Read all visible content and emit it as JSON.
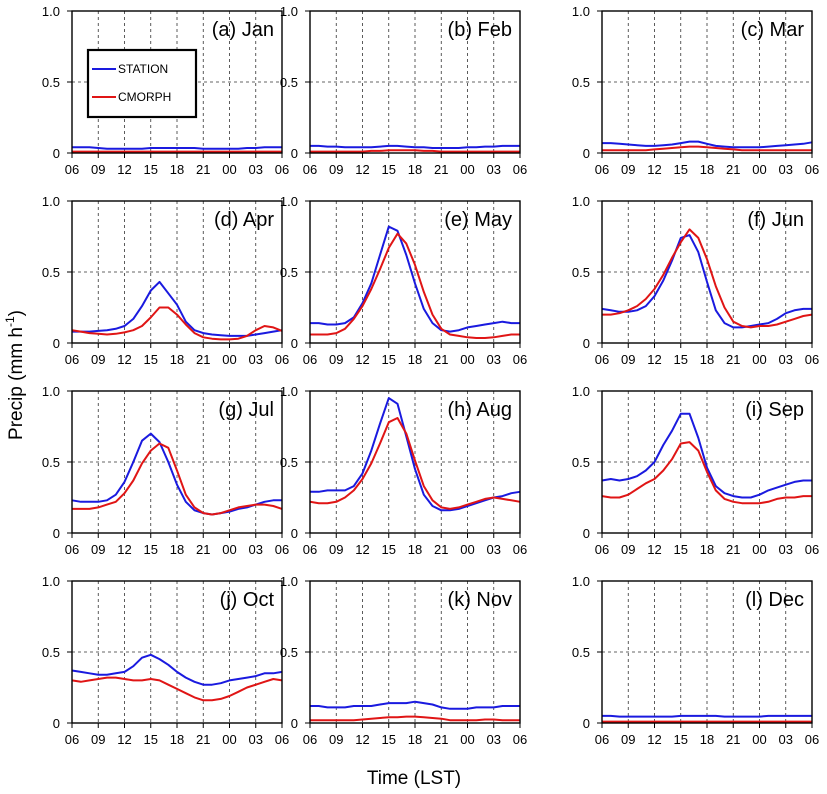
{
  "figure": {
    "ylabel": "Precip (mm h",
    "ylabel_sup": "-1",
    "ylabel_close": ")",
    "xlabel": "Time (LST)"
  },
  "colors": {
    "STATION": "#1a1adf",
    "CMORPH": "#e01515"
  },
  "chart_data": {
    "type": "line",
    "x": [
      "06",
      "07",
      "08",
      "09",
      "10",
      "11",
      "12",
      "13",
      "14",
      "15",
      "16",
      "17",
      "18",
      "19",
      "20",
      "21",
      "22",
      "23",
      "00",
      "01",
      "02",
      "03",
      "04",
      "05",
      "06"
    ],
    "xtick_labels": [
      "06",
      "09",
      "12",
      "15",
      "18",
      "21",
      "00",
      "03",
      "06"
    ],
    "ytick_labels": [
      "0",
      "0.5",
      "1.0"
    ],
    "ylim": [
      0,
      1.0
    ],
    "legend": {
      "placement": "top-left of panel (a)",
      "entries": [
        "STATION",
        "CMORPH"
      ]
    },
    "grid": true,
    "panels": [
      {
        "title": "(a) Jan",
        "series": [
          {
            "name": "STATION",
            "values": [
              0.04,
              0.04,
              0.04,
              0.035,
              0.03,
              0.03,
              0.03,
              0.03,
              0.03,
              0.035,
              0.035,
              0.035,
              0.035,
              0.035,
              0.035,
              0.03,
              0.03,
              0.03,
              0.03,
              0.03,
              0.035,
              0.035,
              0.04,
              0.04,
              0.04
            ]
          },
          {
            "name": "CMORPH",
            "values": [
              0.01,
              0.01,
              0.01,
              0.01,
              0.01,
              0.01,
              0.01,
              0.01,
              0.01,
              0.01,
              0.01,
              0.01,
              0.01,
              0.01,
              0.01,
              0.01,
              0.01,
              0.01,
              0.01,
              0.01,
              0.01,
              0.01,
              0.01,
              0.01,
              0.01
            ]
          }
        ]
      },
      {
        "title": "(b) Feb",
        "series": [
          {
            "name": "STATION",
            "values": [
              0.05,
              0.05,
              0.045,
              0.045,
              0.04,
              0.04,
              0.04,
              0.04,
              0.045,
              0.05,
              0.05,
              0.045,
              0.04,
              0.04,
              0.035,
              0.035,
              0.035,
              0.035,
              0.04,
              0.04,
              0.045,
              0.045,
              0.05,
              0.05,
              0.05
            ]
          },
          {
            "name": "CMORPH",
            "values": [
              0.01,
              0.01,
              0.01,
              0.01,
              0.01,
              0.01,
              0.01,
              0.015,
              0.015,
              0.02,
              0.02,
              0.02,
              0.02,
              0.015,
              0.015,
              0.01,
              0.01,
              0.01,
              0.01,
              0.01,
              0.01,
              0.01,
              0.01,
              0.01,
              0.01
            ]
          }
        ]
      },
      {
        "title": "(c) Mar",
        "series": [
          {
            "name": "STATION",
            "values": [
              0.07,
              0.07,
              0.065,
              0.06,
              0.055,
              0.05,
              0.05,
              0.055,
              0.06,
              0.07,
              0.08,
              0.08,
              0.065,
              0.05,
              0.045,
              0.04,
              0.04,
              0.04,
              0.04,
              0.045,
              0.05,
              0.055,
              0.06,
              0.065,
              0.075
            ]
          },
          {
            "name": "CMORPH",
            "values": [
              0.02,
              0.02,
              0.02,
              0.02,
              0.02,
              0.02,
              0.025,
              0.03,
              0.035,
              0.04,
              0.045,
              0.045,
              0.04,
              0.035,
              0.03,
              0.025,
              0.02,
              0.02,
              0.02,
              0.02,
              0.02,
              0.02,
              0.02,
              0.02,
              0.02
            ]
          }
        ]
      },
      {
        "title": "(d) Apr",
        "series": [
          {
            "name": "STATION",
            "values": [
              0.08,
              0.08,
              0.08,
              0.085,
              0.09,
              0.1,
              0.12,
              0.17,
              0.26,
              0.37,
              0.43,
              0.35,
              0.27,
              0.15,
              0.09,
              0.07,
              0.06,
              0.055,
              0.05,
              0.05,
              0.05,
              0.06,
              0.07,
              0.08,
              0.09
            ]
          },
          {
            "name": "CMORPH",
            "values": [
              0.09,
              0.08,
              0.07,
              0.065,
              0.06,
              0.065,
              0.075,
              0.09,
              0.12,
              0.18,
              0.25,
              0.25,
              0.2,
              0.13,
              0.07,
              0.04,
              0.03,
              0.025,
              0.025,
              0.03,
              0.05,
              0.09,
              0.12,
              0.11,
              0.085
            ]
          }
        ]
      },
      {
        "title": "(e) May",
        "series": [
          {
            "name": "STATION",
            "values": [
              0.14,
              0.14,
              0.13,
              0.13,
              0.14,
              0.18,
              0.28,
              0.42,
              0.62,
              0.82,
              0.79,
              0.62,
              0.42,
              0.24,
              0.14,
              0.09,
              0.08,
              0.09,
              0.11,
              0.12,
              0.13,
              0.14,
              0.15,
              0.14,
              0.14
            ]
          },
          {
            "name": "CMORPH",
            "values": [
              0.06,
              0.06,
              0.06,
              0.07,
              0.1,
              0.17,
              0.26,
              0.38,
              0.52,
              0.67,
              0.77,
              0.7,
              0.55,
              0.36,
              0.2,
              0.1,
              0.06,
              0.05,
              0.04,
              0.035,
              0.035,
              0.04,
              0.05,
              0.06,
              0.06
            ]
          }
        ]
      },
      {
        "title": "(f) Jun",
        "series": [
          {
            "name": "STATION",
            "values": [
              0.24,
              0.23,
              0.22,
              0.22,
              0.23,
              0.26,
              0.33,
              0.44,
              0.58,
              0.74,
              0.76,
              0.64,
              0.43,
              0.23,
              0.14,
              0.11,
              0.11,
              0.12,
              0.13,
              0.14,
              0.17,
              0.21,
              0.23,
              0.24,
              0.24
            ]
          },
          {
            "name": "CMORPH",
            "values": [
              0.2,
              0.2,
              0.21,
              0.23,
              0.26,
              0.31,
              0.38,
              0.48,
              0.6,
              0.71,
              0.8,
              0.74,
              0.59,
              0.4,
              0.25,
              0.15,
              0.12,
              0.11,
              0.12,
              0.12,
              0.13,
              0.15,
              0.17,
              0.19,
              0.2
            ]
          }
        ]
      },
      {
        "title": "(g) Jul",
        "series": [
          {
            "name": "STATION",
            "values": [
              0.23,
              0.22,
              0.22,
              0.22,
              0.23,
              0.27,
              0.36,
              0.5,
              0.65,
              0.7,
              0.64,
              0.5,
              0.34,
              0.22,
              0.16,
              0.14,
              0.13,
              0.14,
              0.15,
              0.17,
              0.18,
              0.2,
              0.22,
              0.23,
              0.23
            ]
          },
          {
            "name": "CMORPH",
            "values": [
              0.17,
              0.17,
              0.17,
              0.18,
              0.2,
              0.22,
              0.28,
              0.37,
              0.49,
              0.58,
              0.63,
              0.6,
              0.44,
              0.27,
              0.18,
              0.14,
              0.13,
              0.14,
              0.16,
              0.18,
              0.19,
              0.2,
              0.2,
              0.19,
              0.17
            ]
          }
        ]
      },
      {
        "title": "(h) Aug",
        "series": [
          {
            "name": "STATION",
            "values": [
              0.29,
              0.29,
              0.3,
              0.3,
              0.3,
              0.33,
              0.42,
              0.58,
              0.77,
              0.95,
              0.91,
              0.68,
              0.45,
              0.27,
              0.19,
              0.16,
              0.16,
              0.17,
              0.19,
              0.21,
              0.23,
              0.25,
              0.26,
              0.28,
              0.29
            ]
          },
          {
            "name": "CMORPH",
            "values": [
              0.22,
              0.21,
              0.21,
              0.22,
              0.25,
              0.3,
              0.38,
              0.49,
              0.63,
              0.78,
              0.81,
              0.7,
              0.51,
              0.33,
              0.23,
              0.18,
              0.17,
              0.18,
              0.2,
              0.22,
              0.24,
              0.25,
              0.24,
              0.23,
              0.22
            ]
          }
        ]
      },
      {
        "title": "(i) Sep",
        "series": [
          {
            "name": "STATION",
            "values": [
              0.37,
              0.38,
              0.37,
              0.38,
              0.4,
              0.44,
              0.5,
              0.62,
              0.72,
              0.84,
              0.84,
              0.67,
              0.46,
              0.33,
              0.28,
              0.26,
              0.25,
              0.25,
              0.27,
              0.3,
              0.32,
              0.34,
              0.36,
              0.37,
              0.37
            ]
          },
          {
            "name": "CMORPH",
            "values": [
              0.26,
              0.25,
              0.25,
              0.27,
              0.31,
              0.35,
              0.38,
              0.44,
              0.52,
              0.63,
              0.64,
              0.58,
              0.43,
              0.3,
              0.24,
              0.22,
              0.21,
              0.21,
              0.21,
              0.22,
              0.24,
              0.25,
              0.25,
              0.26,
              0.26
            ]
          }
        ]
      },
      {
        "title": "(j) Oct",
        "series": [
          {
            "name": "STATION",
            "values": [
              0.37,
              0.36,
              0.35,
              0.34,
              0.34,
              0.35,
              0.36,
              0.4,
              0.46,
              0.48,
              0.45,
              0.41,
              0.36,
              0.32,
              0.29,
              0.27,
              0.27,
              0.28,
              0.3,
              0.31,
              0.32,
              0.33,
              0.35,
              0.35,
              0.36
            ]
          },
          {
            "name": "CMORPH",
            "values": [
              0.3,
              0.29,
              0.3,
              0.31,
              0.32,
              0.32,
              0.31,
              0.3,
              0.3,
              0.31,
              0.3,
              0.27,
              0.24,
              0.21,
              0.18,
              0.16,
              0.16,
              0.17,
              0.19,
              0.22,
              0.25,
              0.27,
              0.29,
              0.31,
              0.3
            ]
          }
        ]
      },
      {
        "title": "(k) Nov",
        "series": [
          {
            "name": "STATION",
            "values": [
              0.12,
              0.12,
              0.11,
              0.11,
              0.11,
              0.12,
              0.12,
              0.12,
              0.13,
              0.14,
              0.14,
              0.14,
              0.15,
              0.14,
              0.13,
              0.11,
              0.1,
              0.1,
              0.1,
              0.11,
              0.11,
              0.11,
              0.12,
              0.12,
              0.12
            ]
          },
          {
            "name": "CMORPH",
            "values": [
              0.02,
              0.02,
              0.02,
              0.02,
              0.02,
              0.02,
              0.025,
              0.03,
              0.035,
              0.04,
              0.04,
              0.045,
              0.045,
              0.04,
              0.035,
              0.03,
              0.02,
              0.02,
              0.02,
              0.02,
              0.025,
              0.025,
              0.02,
              0.02,
              0.02
            ]
          }
        ]
      },
      {
        "title": "(l) Dec",
        "series": [
          {
            "name": "STATION",
            "values": [
              0.05,
              0.05,
              0.045,
              0.045,
              0.045,
              0.045,
              0.045,
              0.045,
              0.045,
              0.05,
              0.05,
              0.05,
              0.05,
              0.05,
              0.045,
              0.045,
              0.045,
              0.045,
              0.045,
              0.05,
              0.05,
              0.05,
              0.05,
              0.05,
              0.05
            ]
          },
          {
            "name": "CMORPH",
            "values": [
              0.01,
              0.01,
              0.01,
              0.01,
              0.01,
              0.01,
              0.01,
              0.01,
              0.01,
              0.01,
              0.01,
              0.01,
              0.01,
              0.01,
              0.01,
              0.01,
              0.01,
              0.01,
              0.01,
              0.01,
              0.01,
              0.01,
              0.01,
              0.01,
              0.01
            ]
          }
        ]
      }
    ]
  }
}
